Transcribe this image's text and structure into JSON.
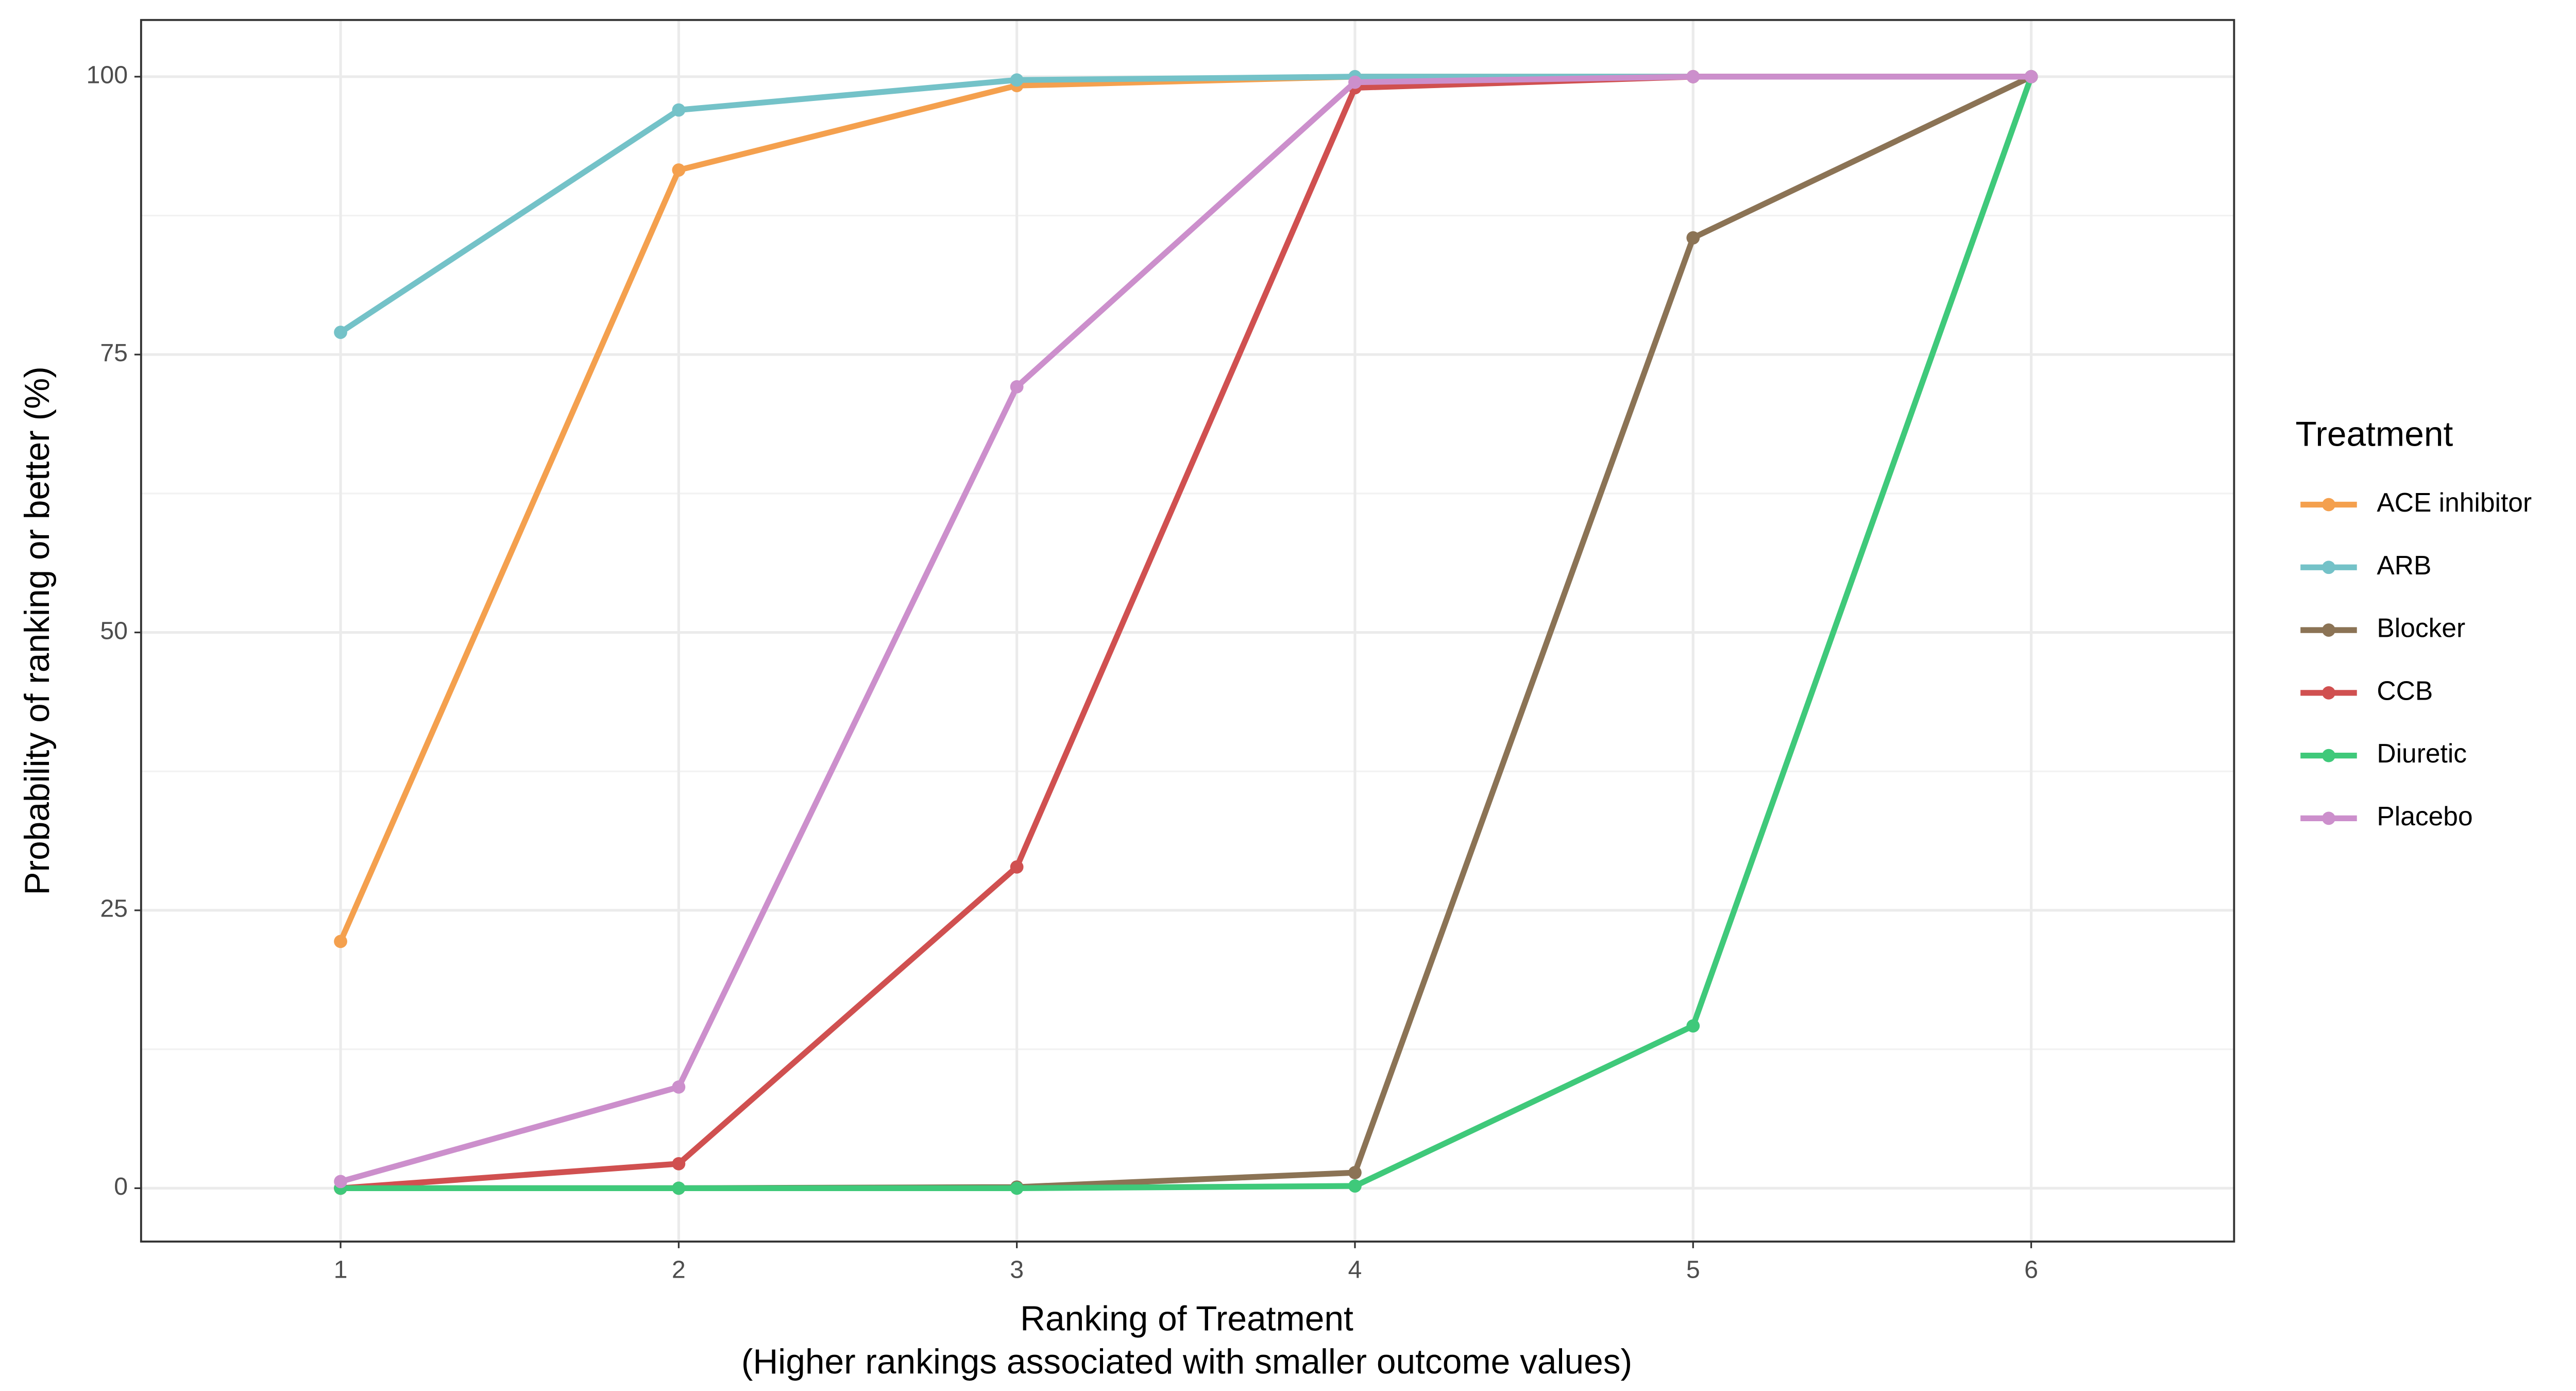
{
  "chart_data": {
    "type": "line",
    "xlabel": [
      "Ranking of Treatment",
      "(Higher rankings associated with smaller outcome values)"
    ],
    "ylabel": "Probability of ranking or better (%)",
    "legend_title": "Treatment",
    "legend_position": "right",
    "x": [
      1,
      2,
      3,
      4,
      5,
      6
    ],
    "xlim": [
      0.41,
      6.6
    ],
    "xticks": [
      1,
      2,
      3,
      4,
      5,
      6
    ],
    "ylim": [
      -4.8,
      105.1
    ],
    "yticks": [
      0,
      25,
      50,
      75,
      100
    ],
    "yminor": [
      12.5,
      37.5,
      62.5,
      87.5
    ],
    "grid": true,
    "series": [
      {
        "name": "ACE inhibitor",
        "color": "#f4a04e",
        "values": [
          22.2,
          91.6,
          99.2,
          100,
          100,
          100
        ]
      },
      {
        "name": "ARB",
        "color": "#74c2c8",
        "values": [
          77,
          97,
          99.7,
          100,
          100,
          100
        ]
      },
      {
        "name": "Blocker",
        "color": "#8b7355",
        "values": [
          0,
          0,
          0.1,
          1.4,
          85.5,
          100
        ]
      },
      {
        "name": "CCB",
        "color": "#d05050",
        "values": [
          0,
          2.2,
          28.9,
          99,
          100,
          100
        ]
      },
      {
        "name": "Diuretic",
        "color": "#3fc97a",
        "values": [
          0,
          0,
          0,
          0.2,
          14.6,
          100
        ]
      },
      {
        "name": "Placebo",
        "color": "#cc8fcc",
        "values": [
          0.6,
          9.1,
          72.1,
          99.5,
          100,
          100
        ]
      }
    ]
  }
}
